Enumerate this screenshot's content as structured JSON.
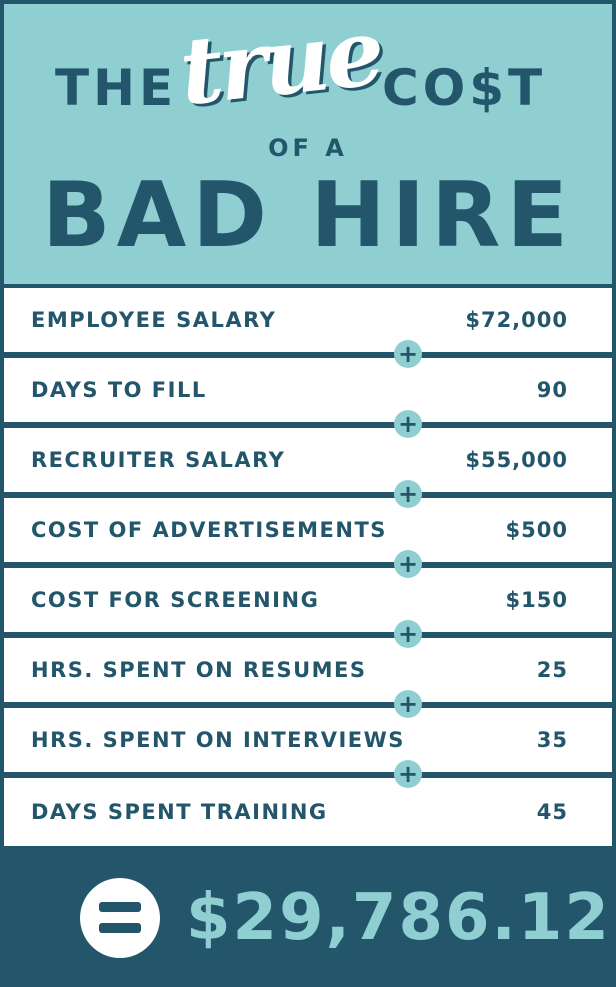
{
  "header": {
    "the": "THE",
    "true": "true",
    "cost": "CO$T",
    "of_a": "OF A",
    "bad_hire": "BAD HIRE"
  },
  "items": [
    {
      "label": "EMPLOYEE SALARY",
      "value": "$72,000"
    },
    {
      "label": "DAYS TO FILL",
      "value": "90"
    },
    {
      "label": "RECRUITER SALARY",
      "value": "$55,000"
    },
    {
      "label": "COST OF ADVERTISEMENTS",
      "value": "$500"
    },
    {
      "label": "COST FOR SCREENING",
      "value": "$150"
    },
    {
      "label": "HRS. SPENT ON RESUMES",
      "value": "25"
    },
    {
      "label": "HRS. SPENT ON INTERVIEWS",
      "value": "35"
    },
    {
      "label": "DAYS SPENT TRAINING",
      "value": "45"
    }
  ],
  "plus_symbol": "+",
  "total": "$29,786.12",
  "colors": {
    "dark_teal": "#23566b",
    "light_teal": "#8fcfd2",
    "white": "#ffffff"
  },
  "icons": {
    "plus": "plus-icon",
    "equals": "equals-icon"
  }
}
